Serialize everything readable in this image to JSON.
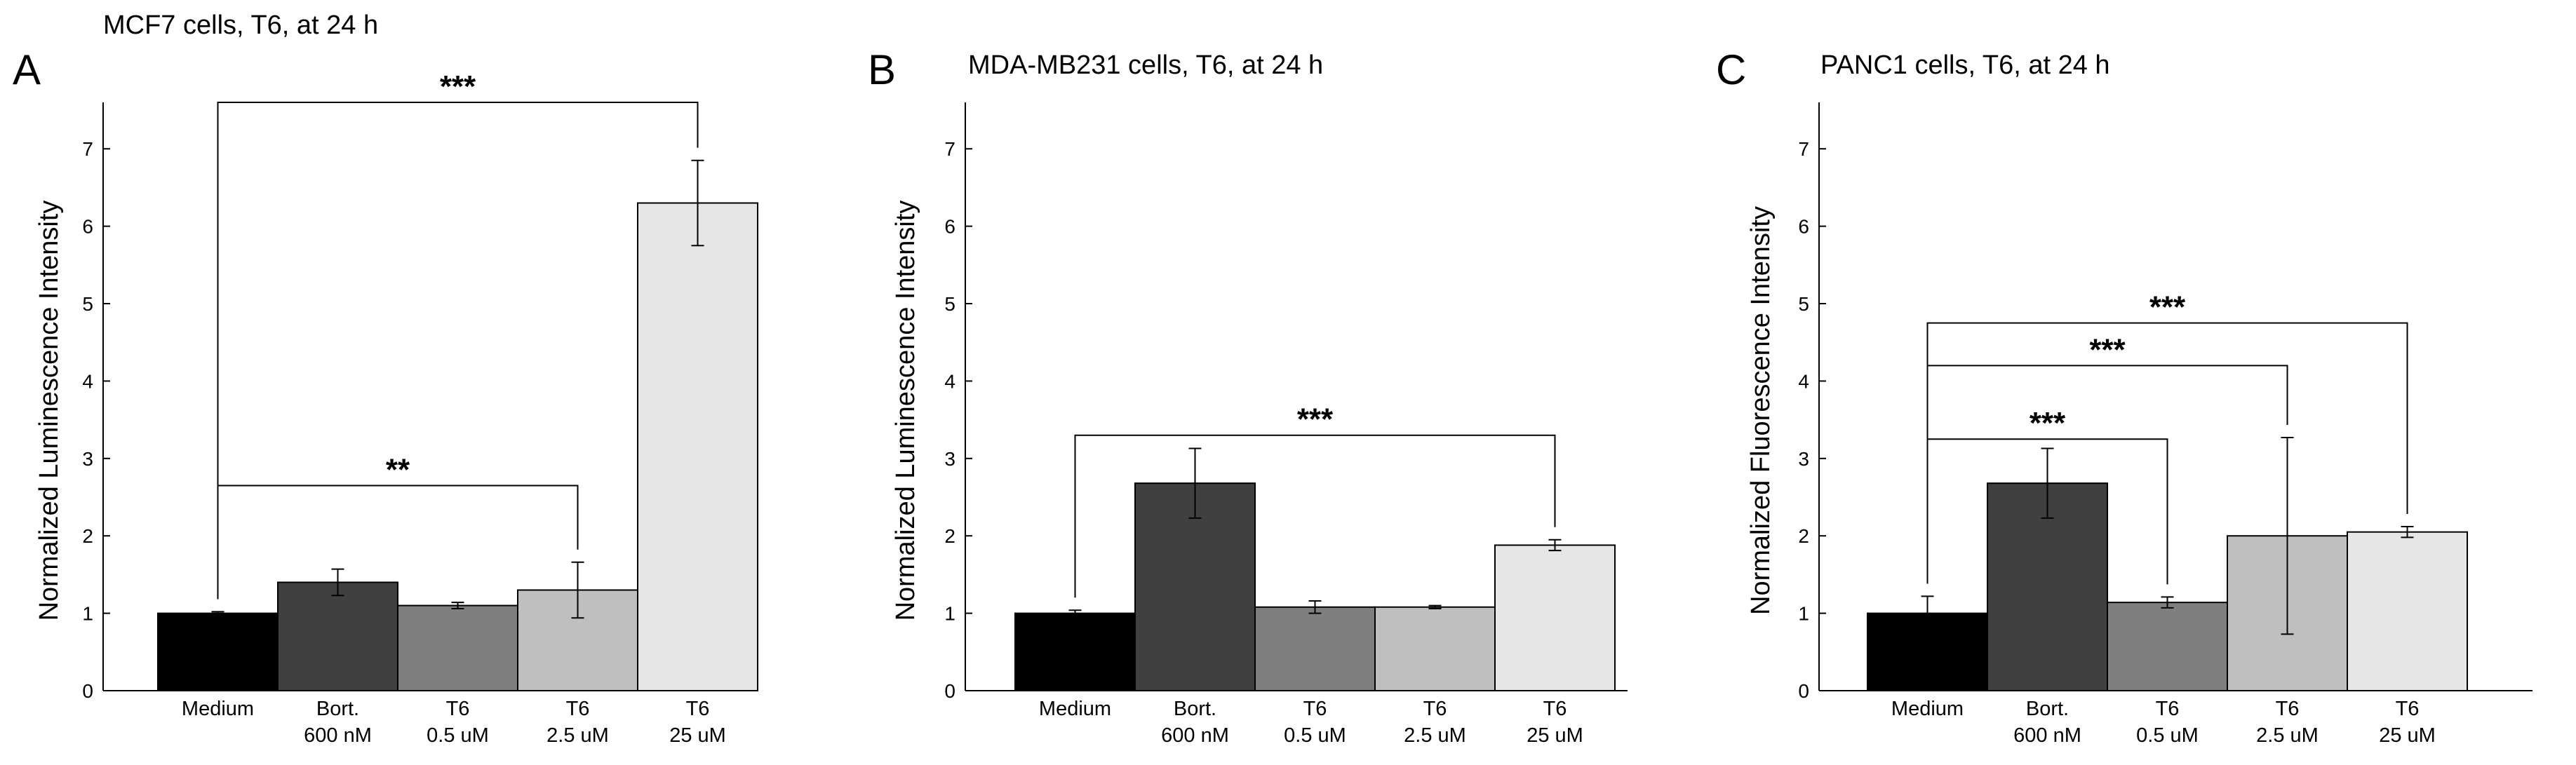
{
  "chart_data": [
    {
      "type": "bar",
      "panel": "A",
      "title": "MCF7 cells, T6, at 24 h",
      "ylabel": "Normalized Luminescence Intensity",
      "xlabel": "",
      "ylim": [
        0,
        7.6
      ],
      "yticks": [
        0,
        1,
        2,
        3,
        4,
        5,
        6,
        7
      ],
      "categories": [
        [
          "Medium"
        ],
        [
          "Bort.",
          "600 nM"
        ],
        [
          "T6",
          "0.5 uM"
        ],
        [
          "T6",
          "2.5 uM"
        ],
        [
          "T6",
          "25 uM"
        ]
      ],
      "values": [
        1.0,
        1.4,
        1.1,
        1.3,
        6.3
      ],
      "errors": [
        0.02,
        0.17,
        0.04,
        0.36,
        0.55
      ],
      "colors": [
        "#000000",
        "#404040",
        "#7f7f7f",
        "#bfbfbf",
        "#e6e6e6"
      ],
      "significance": [
        {
          "from": 0,
          "to": 3,
          "label": "**",
          "level": 2.65
        },
        {
          "from": 0,
          "to": 4,
          "label": "***",
          "level": 7.6
        }
      ]
    },
    {
      "type": "bar",
      "panel": "B",
      "title": "MDA-MB231 cells, T6, at 24 h",
      "ylabel": "Normalized Luminescence Intensity",
      "xlabel": "",
      "ylim": [
        0,
        7.6
      ],
      "yticks": [
        0,
        1,
        2,
        3,
        4,
        5,
        6,
        7
      ],
      "categories": [
        [
          "Medium"
        ],
        [
          "Bort.",
          "600 nM"
        ],
        [
          "T6",
          "0.5 uM"
        ],
        [
          "T6",
          "2.5 uM"
        ],
        [
          "T6",
          "25 uM"
        ]
      ],
      "values": [
        1.0,
        2.68,
        1.08,
        1.08,
        1.88
      ],
      "errors": [
        0.04,
        0.45,
        0.08,
        0.02,
        0.07
      ],
      "colors": [
        "#000000",
        "#404040",
        "#7f7f7f",
        "#bfbfbf",
        "#e6e6e6"
      ],
      "significance": [
        {
          "from": 0,
          "to": 4,
          "label": "***",
          "level": 3.3
        }
      ]
    },
    {
      "type": "bar",
      "panel": "C",
      "title": "PANC1 cells, T6, at 24 h",
      "ylabel": "Normalized Fluorescence Intensity",
      "xlabel": "",
      "ylim": [
        0,
        7.6
      ],
      "yticks": [
        0,
        1,
        2,
        3,
        4,
        5,
        6,
        7
      ],
      "categories": [
        [
          "Medium"
        ],
        [
          "Bort.",
          "600 nM"
        ],
        [
          "T6",
          "0.5 uM"
        ],
        [
          "T6",
          "2.5 uM"
        ],
        [
          "T6",
          "25 uM"
        ]
      ],
      "values": [
        1.0,
        2.68,
        1.14,
        2.0,
        2.05
      ],
      "errors": [
        0.22,
        0.45,
        0.07,
        1.27,
        0.07
      ],
      "colors": [
        "#000000",
        "#404040",
        "#7f7f7f",
        "#bfbfbf",
        "#e6e6e6"
      ],
      "significance": [
        {
          "from": 0,
          "to": 2,
          "label": "***",
          "level": 3.25
        },
        {
          "from": 0,
          "to": 3,
          "label": "***",
          "level": 4.2
        },
        {
          "from": 0,
          "to": 4,
          "label": "***",
          "level": 4.75
        }
      ]
    }
  ]
}
